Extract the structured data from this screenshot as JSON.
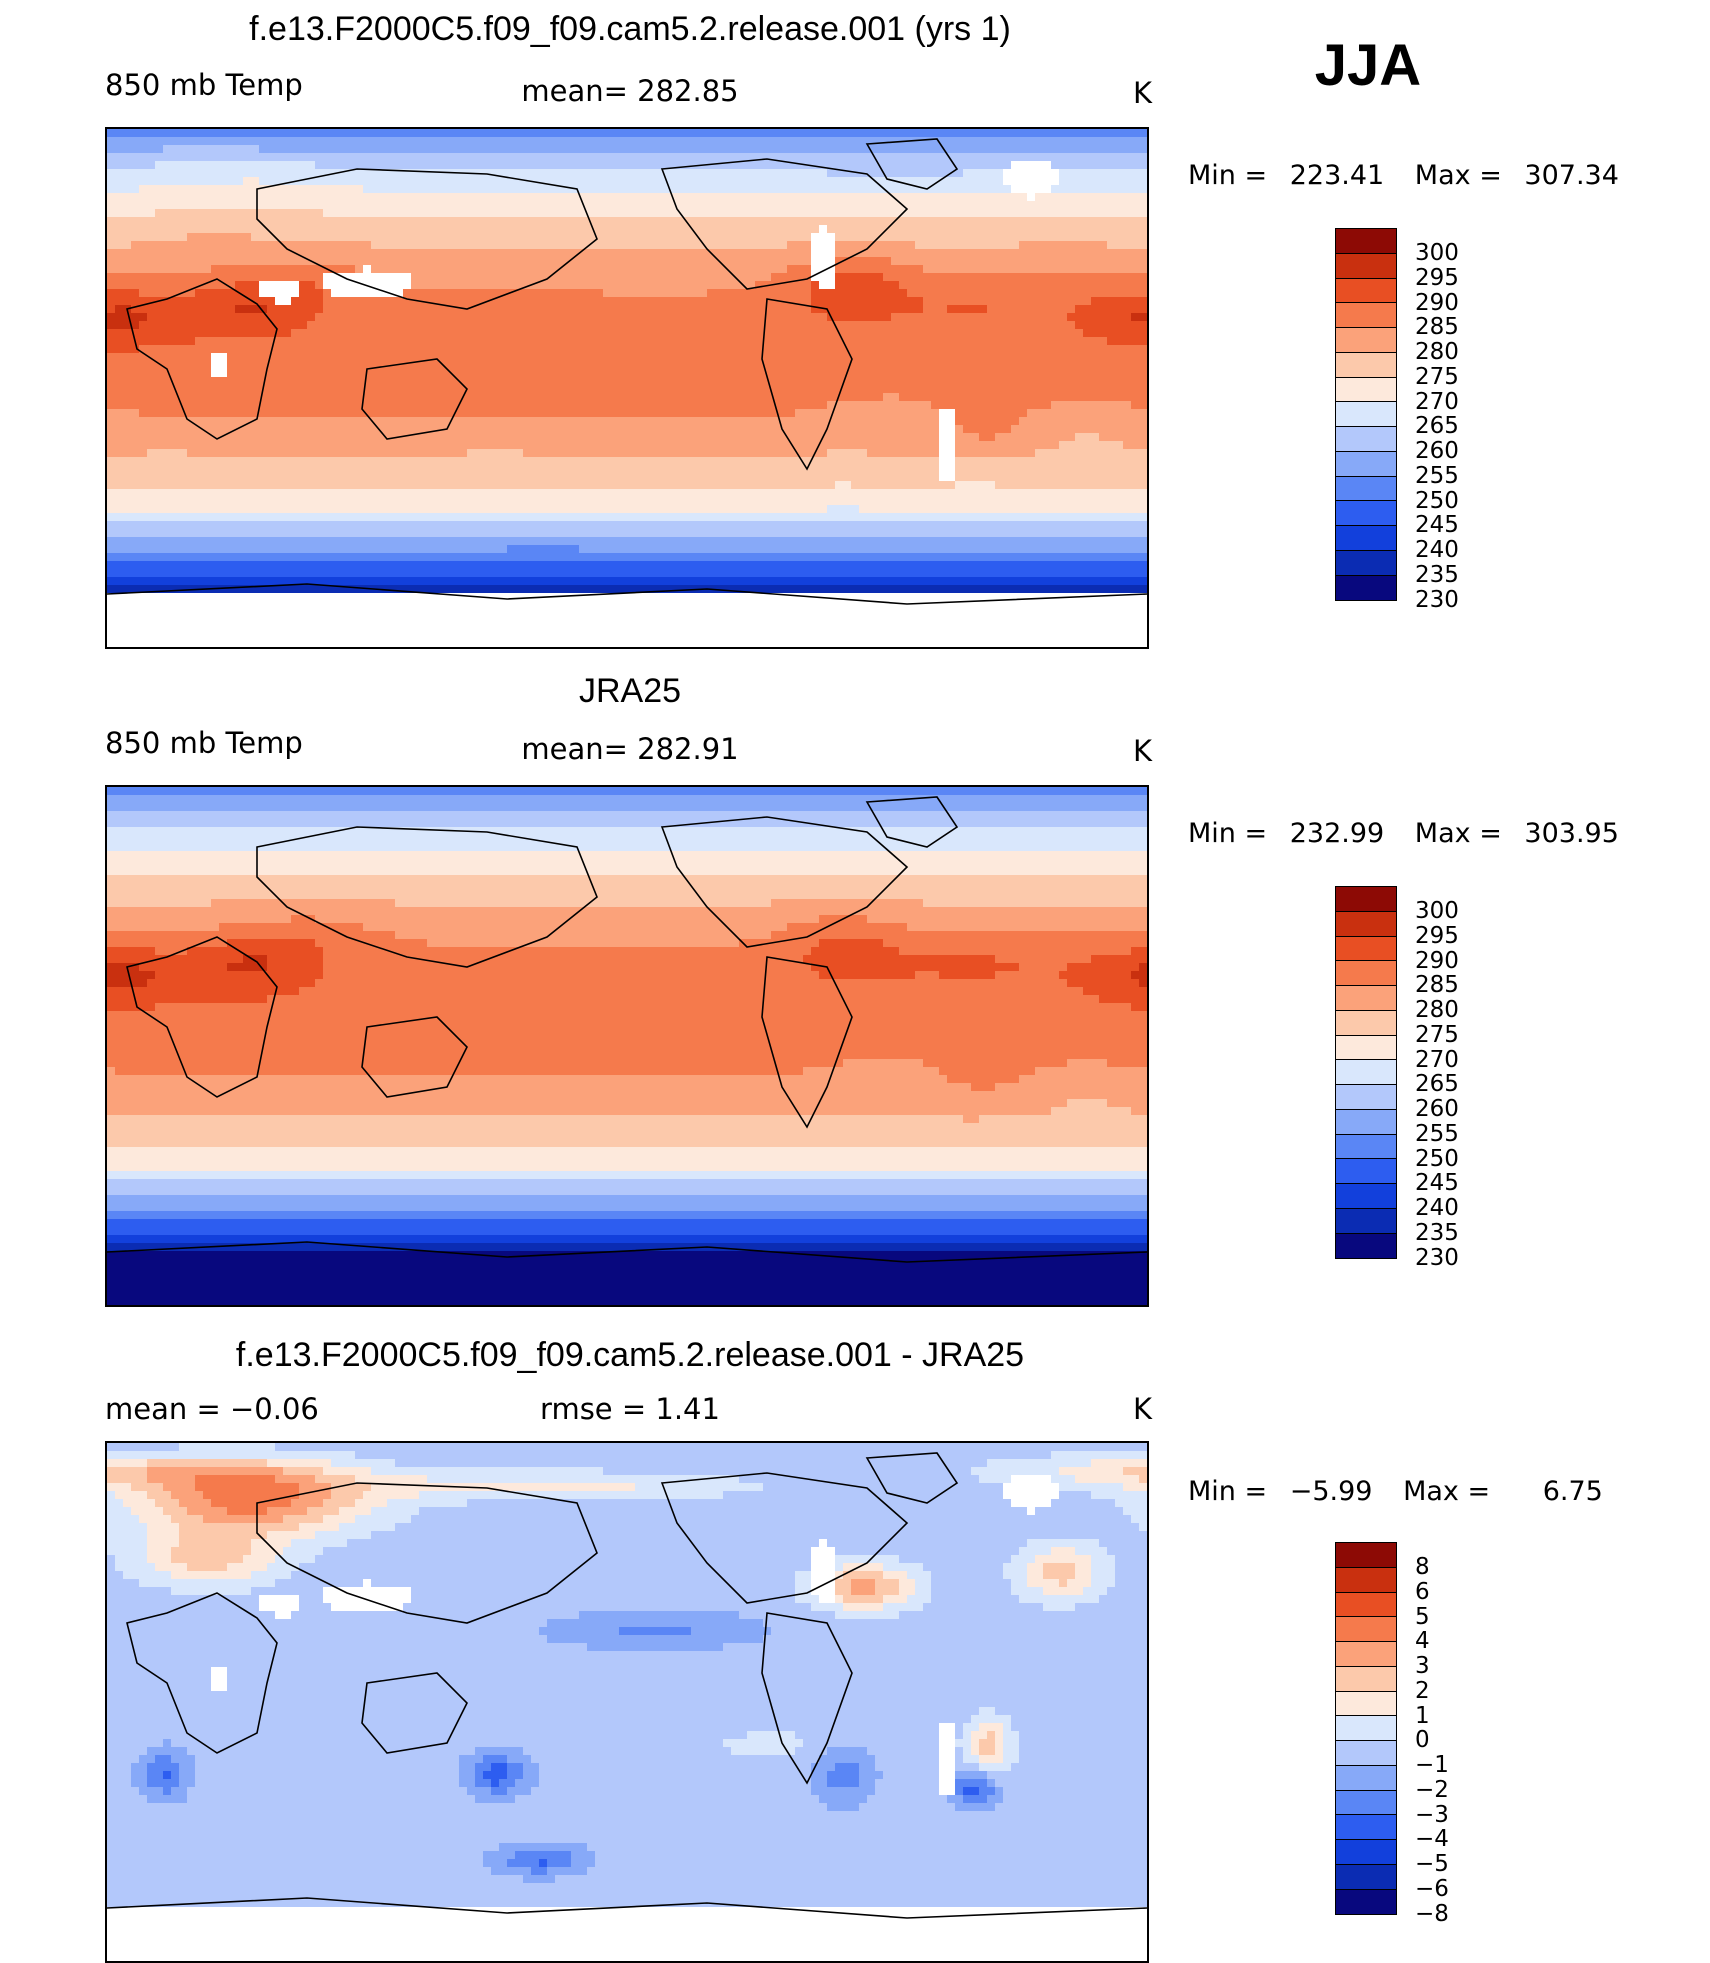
{
  "season": "JJA",
  "colors": {
    "temp_scale": [
      "#08087e",
      "#0b2cb3",
      "#1240dc",
      "#2d5df0",
      "#5a86f5",
      "#87a9f8",
      "#b3c8fb",
      "#d9e7fc",
      "#fde9dc",
      "#fcc9ab",
      "#fba27a",
      "#f57a4c",
      "#e84f23",
      "#c9300f",
      "#8d0a05"
    ],
    "diff_scale": [
      "#08087e",
      "#0b2cb3",
      "#1240dc",
      "#2d5df0",
      "#5a86f5",
      "#87a9f8",
      "#b3c8fb",
      "#d9e7fc",
      "#fde9dc",
      "#fcc9ab",
      "#fba27a",
      "#f57a4c",
      "#e84f23",
      "#c9300f",
      "#8d0a05"
    ],
    "land_line": "#000000"
  },
  "panels": [
    {
      "title": "f.e13.F2000C5.f09_f09.cam5.2.release.001 (yrs 1)",
      "left_label": "850 mb Temp",
      "center_label": "mean=  282.85",
      "units": "K",
      "stats_min_label": "Min  =",
      "stats_min": "223.41",
      "stats_max_label": "Max  =",
      "stats_max": "307.34",
      "field": "model"
    },
    {
      "title": "JRA25",
      "left_label": "850 mb Temp",
      "center_label": "mean=  282.91",
      "units": "K",
      "stats_min_label": "Min  =",
      "stats_min": "232.99",
      "stats_max_label": "Max  =",
      "stats_max": "303.95",
      "field": "obs"
    },
    {
      "title": "f.e13.F2000C5.f09_f09.cam5.2.release.001 - JRA25",
      "left_label": "mean  =     −0.06",
      "center_label": "rmse  =     1.41",
      "units": "K",
      "stats_min_label": "Min  =",
      "stats_min": "−5.99",
      "stats_max_label": "Max  =",
      "stats_max": "6.75",
      "field": "diff"
    }
  ],
  "chart_data": [
    {
      "type": "heatmap",
      "title": "f.e13.F2000C5.f09_f09.cam5.2.release.001 (yrs 1)",
      "variable": "850 mb Temp",
      "units": "K",
      "mean": 282.85,
      "min": 223.41,
      "max": 307.34,
      "contour_levels": [
        230,
        235,
        240,
        245,
        250,
        255,
        260,
        265,
        270,
        275,
        280,
        285,
        290,
        295,
        300
      ],
      "colorbar_labels": [
        "300",
        "295",
        "290",
        "285",
        "280",
        "275",
        "270",
        "265",
        "260",
        "255",
        "250",
        "245",
        "240",
        "235",
        "230"
      ]
    },
    {
      "type": "heatmap",
      "title": "JRA25",
      "variable": "850 mb Temp",
      "units": "K",
      "mean": 282.91,
      "min": 232.99,
      "max": 303.95,
      "contour_levels": [
        230,
        235,
        240,
        245,
        250,
        255,
        260,
        265,
        270,
        275,
        280,
        285,
        290,
        295,
        300
      ],
      "colorbar_labels": [
        "300",
        "295",
        "290",
        "285",
        "280",
        "275",
        "270",
        "265",
        "260",
        "255",
        "250",
        "245",
        "240",
        "235",
        "230"
      ]
    },
    {
      "type": "heatmap",
      "title": "f.e13.F2000C5.f09_f09.cam5.2.release.001 - JRA25",
      "units": "K",
      "mean": -0.06,
      "rmse": 1.41,
      "min": -5.99,
      "max": 6.75,
      "contour_levels": [
        -8,
        -6,
        -5,
        -4,
        -3,
        -2,
        -1,
        0,
        1,
        2,
        3,
        4,
        5,
        6,
        8
      ],
      "colorbar_labels": [
        "8",
        "6",
        "5",
        "4",
        "3",
        "2",
        "1",
        "0",
        "−1",
        "−2",
        "−3",
        "−4",
        "−5",
        "−6",
        "−8"
      ]
    }
  ]
}
